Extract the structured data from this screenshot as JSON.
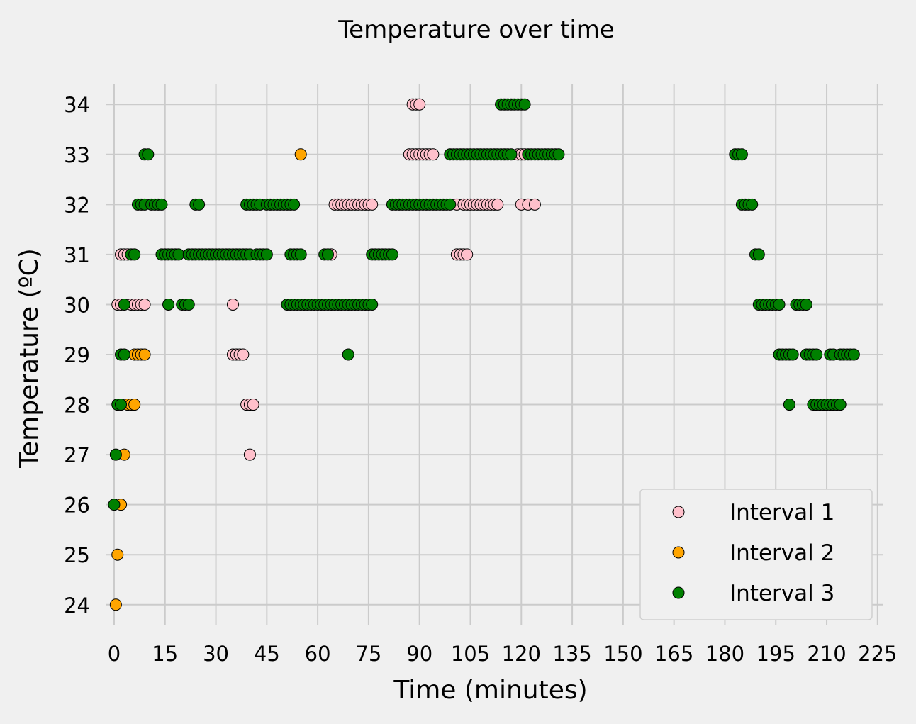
{
  "chart_data": {
    "type": "scatter",
    "title": "Temperature over time",
    "xlabel": "Time (minutes)",
    "ylabel": "Temperature (ºC)",
    "xlim": [
      -2.5,
      226.5
    ],
    "ylim": [
      23.6,
      34.4
    ],
    "xticks": [
      0,
      15,
      30,
      45,
      60,
      75,
      90,
      105,
      120,
      135,
      150,
      165,
      180,
      195,
      210,
      225
    ],
    "yticks": [
      24,
      25,
      26,
      27,
      28,
      29,
      30,
      31,
      32,
      33,
      34
    ],
    "grid": true,
    "legend": "lower-right",
    "series": [
      {
        "name": "Interval 1",
        "color": "#ffc0cb",
        "points": [
          [
            1,
            30
          ],
          [
            2,
            30
          ],
          [
            2,
            31
          ],
          [
            3,
            31
          ],
          [
            4,
            31
          ],
          [
            5,
            30
          ],
          [
            6,
            30
          ],
          [
            7,
            30
          ],
          [
            8,
            30
          ],
          [
            9,
            30
          ],
          [
            35,
            30
          ],
          [
            35,
            29
          ],
          [
            36,
            29
          ],
          [
            37,
            29
          ],
          [
            38,
            29
          ],
          [
            39,
            28
          ],
          [
            40,
            28
          ],
          [
            41,
            28
          ],
          [
            40,
            27
          ],
          [
            64,
            31
          ],
          [
            65,
            32
          ],
          [
            66,
            32
          ],
          [
            67,
            32
          ],
          [
            68,
            32
          ],
          [
            69,
            32
          ],
          [
            70,
            32
          ],
          [
            71,
            32
          ],
          [
            72,
            32
          ],
          [
            73,
            32
          ],
          [
            74,
            32
          ],
          [
            75,
            32
          ],
          [
            76,
            32
          ],
          [
            87,
            33
          ],
          [
            88,
            33
          ],
          [
            89,
            33
          ],
          [
            90,
            33
          ],
          [
            91,
            33
          ],
          [
            92,
            33
          ],
          [
            93,
            33
          ],
          [
            94,
            33
          ],
          [
            88,
            34
          ],
          [
            89,
            34
          ],
          [
            90,
            34
          ],
          [
            101,
            32
          ],
          [
            103,
            32
          ],
          [
            104,
            32
          ],
          [
            105,
            32
          ],
          [
            106,
            32
          ],
          [
            107,
            32
          ],
          [
            108,
            32
          ],
          [
            109,
            32
          ],
          [
            110,
            32
          ],
          [
            111,
            32
          ],
          [
            112,
            32
          ],
          [
            113,
            32
          ],
          [
            101,
            31
          ],
          [
            102,
            31
          ],
          [
            103,
            31
          ],
          [
            104,
            31
          ],
          [
            119,
            33
          ],
          [
            120,
            33
          ],
          [
            121,
            33
          ],
          [
            120,
            32
          ],
          [
            122,
            32
          ],
          [
            124,
            32
          ]
        ]
      },
      {
        "name": "Interval 2",
        "color": "#ffa500",
        "points": [
          [
            0.5,
            24
          ],
          [
            1,
            25
          ],
          [
            2,
            26
          ],
          [
            3,
            27
          ],
          [
            4,
            28
          ],
          [
            5,
            28
          ],
          [
            6,
            28
          ],
          [
            6,
            29
          ],
          [
            7,
            29
          ],
          [
            8,
            29
          ],
          [
            9,
            29
          ],
          [
            55,
            33
          ]
        ]
      },
      {
        "name": "Interval 3",
        "color": "#008000",
        "points": [
          [
            0,
            26
          ],
          [
            0.5,
            27
          ],
          [
            1,
            28
          ],
          [
            2,
            28
          ],
          [
            2,
            29
          ],
          [
            3,
            29
          ],
          [
            3,
            30
          ],
          [
            5,
            31
          ],
          [
            6,
            31
          ],
          [
            7,
            32
          ],
          [
            8,
            32
          ],
          [
            9,
            32
          ],
          [
            9,
            33
          ],
          [
            10,
            33
          ],
          [
            11,
            32
          ],
          [
            12,
            32
          ],
          [
            13,
            32
          ],
          [
            14,
            32
          ],
          [
            14,
            31
          ],
          [
            15,
            31
          ],
          [
            16,
            31
          ],
          [
            17,
            31
          ],
          [
            18,
            31
          ],
          [
            19,
            31
          ],
          [
            16,
            30
          ],
          [
            20,
            30
          ],
          [
            21,
            30
          ],
          [
            22,
            30
          ],
          [
            22,
            31
          ],
          [
            23,
            31
          ],
          [
            24,
            31
          ],
          [
            25,
            31
          ],
          [
            24,
            32
          ],
          [
            25,
            32
          ],
          [
            26,
            31
          ],
          [
            27,
            31
          ],
          [
            28,
            31
          ],
          [
            29,
            31
          ],
          [
            30,
            31
          ],
          [
            31,
            31
          ],
          [
            32,
            31
          ],
          [
            33,
            31
          ],
          [
            34,
            31
          ],
          [
            35,
            31
          ],
          [
            36,
            31
          ],
          [
            37,
            31
          ],
          [
            38,
            31
          ],
          [
            39,
            31
          ],
          [
            40,
            31
          ],
          [
            39,
            32
          ],
          [
            40,
            32
          ],
          [
            41,
            32
          ],
          [
            42,
            32
          ],
          [
            43,
            32
          ],
          [
            42,
            31
          ],
          [
            43,
            31
          ],
          [
            44,
            31
          ],
          [
            45,
            31
          ],
          [
            45,
            32
          ],
          [
            46,
            32
          ],
          [
            47,
            32
          ],
          [
            48,
            32
          ],
          [
            49,
            32
          ],
          [
            50,
            32
          ],
          [
            51,
            32
          ],
          [
            52,
            32
          ],
          [
            53,
            32
          ],
          [
            52,
            31
          ],
          [
            53,
            31
          ],
          [
            54,
            31
          ],
          [
            55,
            31
          ],
          [
            51,
            30
          ],
          [
            52,
            30
          ],
          [
            53,
            30
          ],
          [
            54,
            30
          ],
          [
            55,
            30
          ],
          [
            56,
            30
          ],
          [
            57,
            30
          ],
          [
            58,
            30
          ],
          [
            59,
            30
          ],
          [
            60,
            30
          ],
          [
            61,
            30
          ],
          [
            62,
            30
          ],
          [
            63,
            30
          ],
          [
            64,
            30
          ],
          [
            65,
            30
          ],
          [
            66,
            30
          ],
          [
            67,
            30
          ],
          [
            68,
            30
          ],
          [
            69,
            30
          ],
          [
            70,
            30
          ],
          [
            71,
            30
          ],
          [
            72,
            30
          ],
          [
            73,
            30
          ],
          [
            74,
            30
          ],
          [
            75,
            30
          ],
          [
            76,
            30
          ],
          [
            62,
            31
          ],
          [
            63,
            31
          ],
          [
            69,
            29
          ],
          [
            76,
            31
          ],
          [
            77,
            31
          ],
          [
            78,
            31
          ],
          [
            79,
            31
          ],
          [
            80,
            31
          ],
          [
            81,
            31
          ],
          [
            82,
            31
          ],
          [
            82,
            32
          ],
          [
            83,
            32
          ],
          [
            84,
            32
          ],
          [
            85,
            32
          ],
          [
            86,
            32
          ],
          [
            87,
            32
          ],
          [
            88,
            32
          ],
          [
            89,
            32
          ],
          [
            90,
            32
          ],
          [
            91,
            32
          ],
          [
            92,
            32
          ],
          [
            93,
            32
          ],
          [
            94,
            32
          ],
          [
            95,
            32
          ],
          [
            96,
            32
          ],
          [
            97,
            32
          ],
          [
            98,
            32
          ],
          [
            99,
            32
          ],
          [
            99,
            33
          ],
          [
            100,
            33
          ],
          [
            101,
            33
          ],
          [
            102,
            33
          ],
          [
            103,
            33
          ],
          [
            104,
            33
          ],
          [
            105,
            33
          ],
          [
            106,
            33
          ],
          [
            107,
            33
          ],
          [
            108,
            33
          ],
          [
            109,
            33
          ],
          [
            110,
            33
          ],
          [
            111,
            33
          ],
          [
            112,
            33
          ],
          [
            113,
            33
          ],
          [
            114,
            33
          ],
          [
            115,
            33
          ],
          [
            116,
            33
          ],
          [
            117,
            33
          ],
          [
            114,
            34
          ],
          [
            115,
            34
          ],
          [
            116,
            34
          ],
          [
            117,
            34
          ],
          [
            118,
            34
          ],
          [
            119,
            34
          ],
          [
            120,
            34
          ],
          [
            121,
            34
          ],
          [
            122,
            33
          ],
          [
            123,
            33
          ],
          [
            124,
            33
          ],
          [
            125,
            33
          ],
          [
            126,
            33
          ],
          [
            127,
            33
          ],
          [
            128,
            33
          ],
          [
            129,
            33
          ],
          [
            130,
            33
          ],
          [
            131,
            33
          ],
          [
            183,
            33
          ],
          [
            184,
            33
          ],
          [
            185,
            33
          ],
          [
            185,
            32
          ],
          [
            186,
            32
          ],
          [
            187,
            32
          ],
          [
            188,
            32
          ],
          [
            189,
            31
          ],
          [
            190,
            31
          ],
          [
            190,
            30
          ],
          [
            191,
            30
          ],
          [
            192,
            30
          ],
          [
            193,
            30
          ],
          [
            194,
            30
          ],
          [
            195,
            30
          ],
          [
            196,
            30
          ],
          [
            196,
            29
          ],
          [
            197,
            29
          ],
          [
            198,
            29
          ],
          [
            199,
            29
          ],
          [
            200,
            29
          ],
          [
            199,
            28
          ],
          [
            201,
            30
          ],
          [
            202,
            30
          ],
          [
            203,
            30
          ],
          [
            204,
            30
          ],
          [
            204,
            29
          ],
          [
            205,
            29
          ],
          [
            206,
            29
          ],
          [
            207,
            29
          ],
          [
            206,
            28
          ],
          [
            207,
            28
          ],
          [
            208,
            28
          ],
          [
            209,
            28
          ],
          [
            210,
            28
          ],
          [
            211,
            28
          ],
          [
            212,
            28
          ],
          [
            213,
            28
          ],
          [
            214,
            28
          ],
          [
            211,
            29
          ],
          [
            212,
            29
          ],
          [
            214,
            29
          ],
          [
            215,
            29
          ],
          [
            216,
            29
          ],
          [
            217,
            29
          ],
          [
            218,
            29
          ]
        ]
      }
    ]
  }
}
